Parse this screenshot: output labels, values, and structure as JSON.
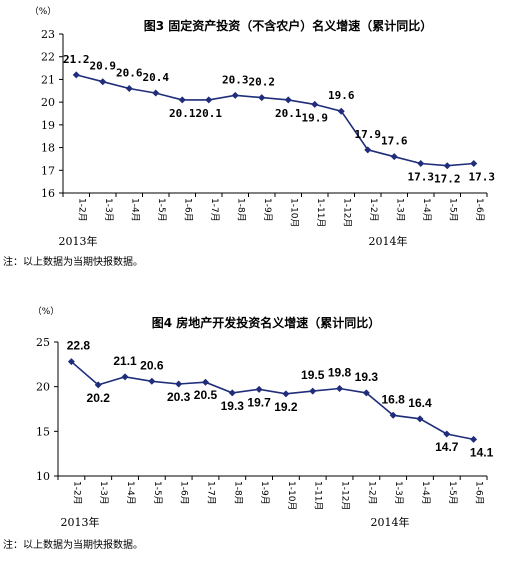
{
  "chart_data": [
    {
      "type": "line",
      "title": "图3 固定资产投资（不含农户）名义增速（累计同比）",
      "unit_label": "（%）",
      "ylim": [
        16,
        23
      ],
      "yticks": [
        "16",
        "17",
        "18",
        "19",
        "20",
        "21",
        "22",
        "23"
      ],
      "categories": [
        "1-2月",
        "1-3月",
        "1-4月",
        "1-5月",
        "1-6月",
        "1-7月",
        "1-8月",
        "1-9月",
        "1-10月",
        "1-11月",
        "1-12月",
        "1-2月",
        "1-3月",
        "1-4月",
        "1-5月",
        "1-6月"
      ],
      "values": [
        21.2,
        20.9,
        20.6,
        20.4,
        20.1,
        20.1,
        20.3,
        20.2,
        20.1,
        19.9,
        19.6,
        17.9,
        17.6,
        17.3,
        17.2,
        17.3
      ],
      "data_labels": [
        "21.2",
        "20.9",
        "20.6",
        "20.4",
        "20.1",
        "20.1",
        "20.3",
        "20.2",
        "20.1",
        "19.9",
        "19.6",
        "17.9",
        "17.6",
        "17.3",
        "17.2",
        "17.3"
      ],
      "year_labels": [
        "2013年",
        "2014年"
      ],
      "grid": false,
      "color": "#1f2d7a"
    },
    {
      "type": "line",
      "title": "图4 房地产开发投资名义增速（累计同比）",
      "unit_label": "（%）",
      "ylim": [
        10,
        25
      ],
      "yticks": [
        "10",
        "15",
        "20",
        "25"
      ],
      "categories": [
        "1-2月",
        "1-3月",
        "1-4月",
        "1-5月",
        "1-6月",
        "1-7月",
        "1-8月",
        "1-9月",
        "1-10月",
        "1-11月",
        "1-12月",
        "1-2月",
        "1-3月",
        "1-4月",
        "1-5月",
        "1-6月"
      ],
      "values": [
        22.8,
        20.2,
        21.1,
        20.6,
        20.3,
        20.5,
        19.3,
        19.7,
        19.2,
        19.5,
        19.8,
        19.3,
        16.8,
        16.4,
        14.7,
        14.1
      ],
      "data_labels": [
        "22.8",
        "20.2",
        "21.1",
        "20.6",
        "20.3",
        "20.5",
        "19.3",
        "19.7",
        "19.2",
        "19.5",
        "19.8",
        "19.3",
        "16.8",
        "16.4",
        "14.7",
        "14.1"
      ],
      "year_labels": [
        "2013年",
        "2014年"
      ],
      "grid": false,
      "color": "#1f2d7a"
    }
  ],
  "notes": [
    "注：以上数据为当期快报数据。",
    "注：以上数据为当期快报数据。"
  ]
}
